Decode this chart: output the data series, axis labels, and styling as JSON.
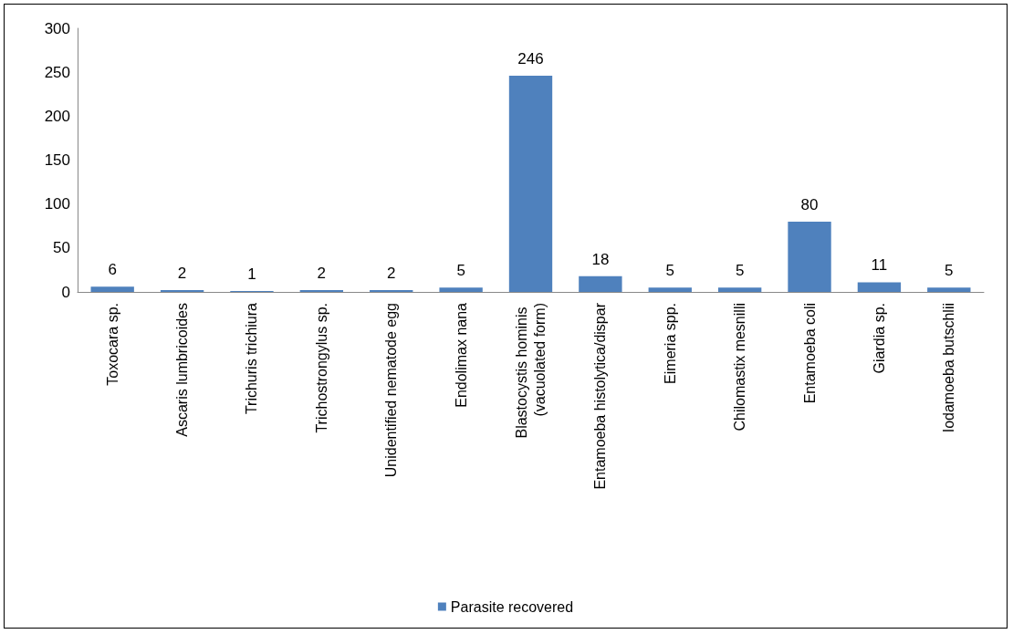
{
  "chart_data": {
    "type": "bar",
    "categories": [
      "Toxocara sp.",
      "Ascaris lumbricoides",
      "Trichuris trichiura",
      "Trichostrongylus sp.",
      "Unidentified nematode egg",
      "Endolimax nana",
      "Blastocystis hominis (vacuolated form)",
      "Entamoeba histolytica/dispar",
      "Eimeria spp.",
      "Chilomastix mesnilli",
      "Entamoeba coli",
      "Giardia sp.",
      "Iodamoeba butschlii"
    ],
    "series": [
      {
        "name": "Parasite recovered",
        "color": "#4f81bd",
        "values": [
          6,
          2,
          1,
          2,
          2,
          5,
          246,
          18,
          5,
          5,
          80,
          11,
          5
        ]
      }
    ],
    "ylim": [
      0,
      300
    ],
    "yticks": [
      0,
      50,
      100,
      150,
      200,
      250,
      300
    ],
    "data_labels": true,
    "grid": false,
    "legend": "bottom"
  }
}
